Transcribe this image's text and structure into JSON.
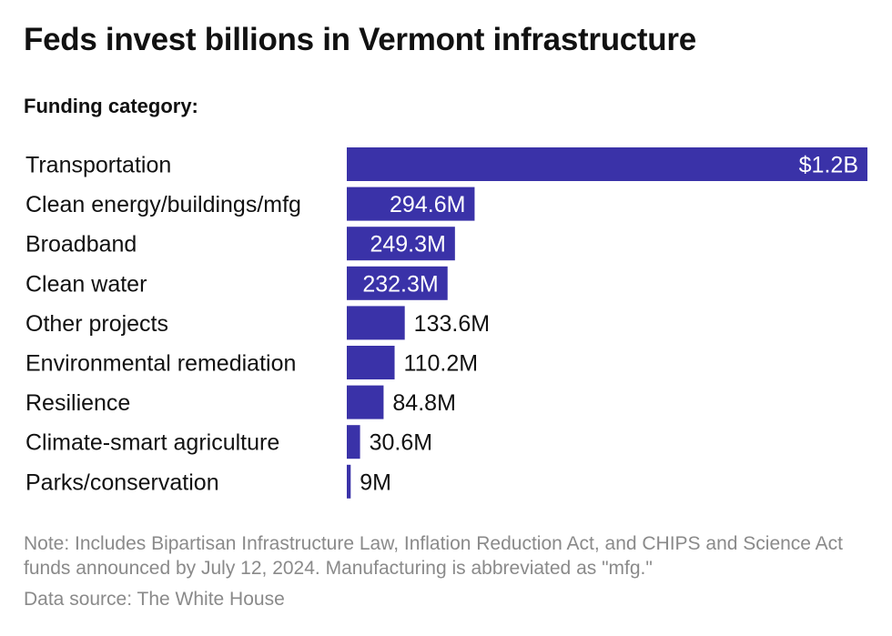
{
  "title": "Feds invest billions in Vermont infrastructure",
  "subtitle": "Funding category:",
  "note": "Note: Includes Bipartisan Infrastructure Law, Inflation Reduction Act, and CHIPS and Science Act funds announced by July 12, 2024. Manufacturing is abbreviated as \"mfg.\"",
  "source": "Data source: The White House",
  "colors": {
    "bar": "#3a32a8",
    "label_inside": "#ffffff",
    "label_outside": "#111111"
  },
  "chart_data": {
    "type": "bar",
    "orientation": "horizontal",
    "categories": [
      "Transportation",
      "Clean energy/buildings/mfg",
      "Broadband",
      "Clean water",
      "Other projects",
      "Environmental remediation",
      "Resilience",
      "Climate-smart agriculture",
      "Parks/conservation"
    ],
    "values": [
      1200,
      294.6,
      249.3,
      232.3,
      133.6,
      110.2,
      84.8,
      30.6,
      9
    ],
    "value_unit": "millions of dollars",
    "data_labels": [
      "$1.2B",
      "294.6M",
      "249.3M",
      "232.3M",
      "133.6M",
      "110.2M",
      "84.8M",
      "30.6M",
      "9M"
    ],
    "xlim": [
      0,
      1200
    ],
    "grid": false,
    "legend": "none"
  }
}
